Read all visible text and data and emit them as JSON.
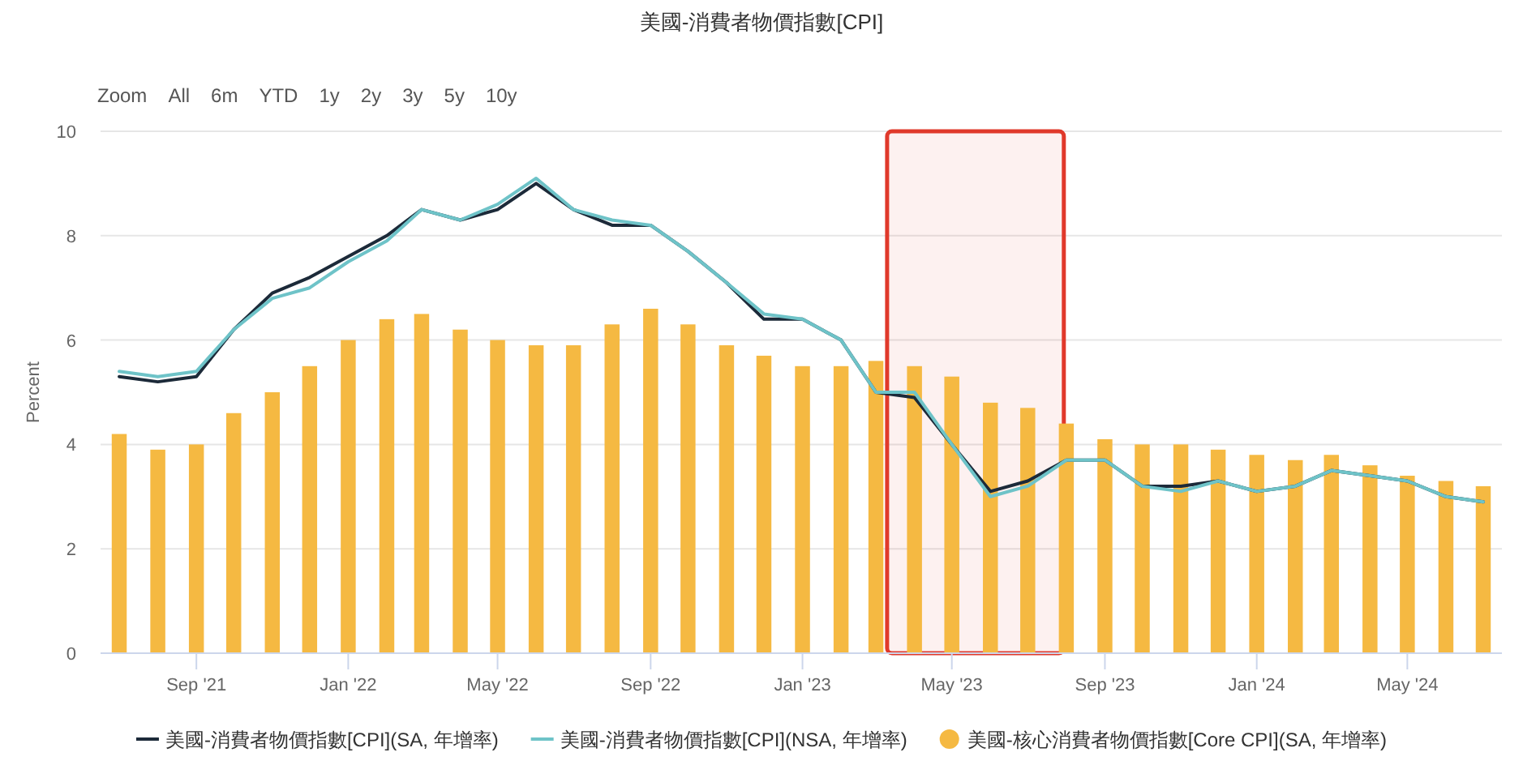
{
  "chart_data": {
    "type": "bar",
    "title": "美國-消費者物價指數[CPI]",
    "ylabel": "Percent",
    "annotations": [
      "Zoom",
      "All",
      "6m",
      "YTD",
      "1y",
      "2y",
      "3y",
      "5y",
      "10y"
    ],
    "x": [
      "2021-07",
      "2021-08",
      "2021-09",
      "2021-10",
      "2021-11",
      "2021-12",
      "2022-01",
      "2022-02",
      "2022-03",
      "2022-04",
      "2022-05",
      "2022-06",
      "2022-07",
      "2022-08",
      "2022-09",
      "2022-10",
      "2022-11",
      "2022-12",
      "2023-01",
      "2023-02",
      "2023-03",
      "2023-04",
      "2023-05",
      "2023-06",
      "2023-07",
      "2023-08",
      "2023-09",
      "2023-10",
      "2023-11",
      "2023-12",
      "2024-01",
      "2024-02",
      "2024-03",
      "2024-04",
      "2024-05",
      "2024-06",
      "2024-07"
    ],
    "xlim": [
      "2021-06-16",
      "2024-07-16"
    ],
    "xticks": [
      {
        "value": "2021-09",
        "label": "Sep '21"
      },
      {
        "value": "2022-01",
        "label": "Jan '22"
      },
      {
        "value": "2022-05",
        "label": "May '22"
      },
      {
        "value": "2022-09",
        "label": "Sep '22"
      },
      {
        "value": "2023-01",
        "label": "Jan '23"
      },
      {
        "value": "2023-05",
        "label": "May '23"
      },
      {
        "value": "2023-09",
        "label": "Sep '23"
      },
      {
        "value": "2024-01",
        "label": "Jan '24"
      },
      {
        "value": "2024-05",
        "label": "May '24"
      }
    ],
    "ylim": [
      0,
      10
    ],
    "yticks": [
      0,
      2,
      4,
      6,
      8,
      10
    ],
    "grid": "y",
    "legend": "bottom",
    "bands": [
      {
        "axis": "x",
        "from": "2023-03-10",
        "to": "2023-07-30",
        "color": "#e0392b"
      }
    ],
    "series": [
      {
        "name": "美國-消費者物價指數[CPI](SA, 年增率)",
        "type": "line",
        "color": "#1c2a39",
        "values": [
          5.3,
          5.2,
          5.3,
          6.2,
          6.9,
          7.2,
          7.6,
          8.0,
          8.5,
          8.3,
          8.5,
          9.0,
          8.5,
          8.2,
          8.2,
          7.7,
          7.1,
          6.4,
          6.4,
          6.0,
          5.0,
          4.9,
          4.0,
          3.1,
          3.3,
          3.7,
          3.7,
          3.2,
          3.2,
          3.3,
          3.1,
          3.2,
          3.5,
          3.4,
          3.3,
          3.0,
          2.9
        ]
      },
      {
        "name": "美國-消費者物價指數[CPI](NSA, 年增率)",
        "type": "line",
        "color": "#6ec3c8",
        "values": [
          5.4,
          5.3,
          5.4,
          6.2,
          6.8,
          7.0,
          7.5,
          7.9,
          8.5,
          8.3,
          8.6,
          9.1,
          8.5,
          8.3,
          8.2,
          7.7,
          7.1,
          6.5,
          6.4,
          6.0,
          5.0,
          5.0,
          4.0,
          3.0,
          3.2,
          3.7,
          3.7,
          3.2,
          3.1,
          3.3,
          3.1,
          3.2,
          3.5,
          3.4,
          3.3,
          3.0,
          2.9
        ]
      },
      {
        "name": "美國-核心消費者物價指數[Core CPI](SA, 年增率)",
        "color": "#f5b942",
        "values": [
          4.2,
          3.9,
          4.0,
          4.6,
          5.0,
          5.5,
          6.0,
          6.4,
          6.5,
          6.2,
          6.0,
          5.9,
          5.9,
          6.3,
          6.6,
          6.3,
          5.9,
          5.7,
          5.5,
          5.5,
          5.6,
          5.5,
          5.3,
          4.8,
          4.7,
          4.4,
          4.1,
          4.0,
          4.0,
          3.9,
          3.8,
          3.7,
          3.8,
          3.6,
          3.4,
          3.3,
          3.2
        ]
      }
    ]
  }
}
